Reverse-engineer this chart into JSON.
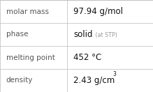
{
  "rows": [
    {
      "label": "molar mass",
      "value": "97.94 g/mol",
      "type": "simple"
    },
    {
      "label": "phase",
      "value": "solid",
      "suffix": " (at STP)",
      "type": "mixed"
    },
    {
      "label": "melting point",
      "value": "452 °C",
      "type": "simple"
    },
    {
      "label": "density",
      "value": "2.43 g/cm",
      "superscript": "3",
      "type": "super"
    }
  ],
  "col_split": 0.44,
  "bg_color": "#ffffff",
  "border_color": "#bbbbbb",
  "label_color": "#555555",
  "value_color": "#111111",
  "suffix_color": "#999999",
  "label_fontsize": 7.5,
  "value_fontsize": 8.5,
  "suffix_fontsize": 5.8,
  "super_fontsize": 5.5
}
